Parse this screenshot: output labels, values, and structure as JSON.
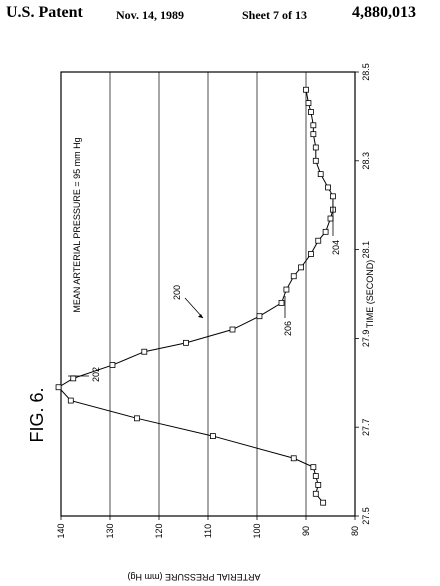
{
  "header": {
    "patent": "U.S. Patent",
    "date": "Nov. 14, 1989",
    "sheet": "Sheet 7 of 13",
    "number": "4,880,013"
  },
  "figure": {
    "label": "FIG. 6.",
    "annotation": "MEAN ARTERIAL PRESSURE = 95 mm Hg",
    "refs": [
      {
        "text": "200"
      },
      {
        "text": "202"
      },
      {
        "text": "204"
      },
      {
        "text": "206"
      }
    ]
  },
  "chart_data": {
    "type": "line",
    "orientation": "rotated-90",
    "title": "",
    "xlabel": "TIME (SECOND)",
    "ylabel": "ARTERIAL PRESSURE (mm Hg)",
    "xlim": [
      27.5,
      28.5
    ],
    "ylim": [
      80,
      140
    ],
    "x_ticks": [
      "27.5",
      "27.7",
      "27.9",
      "28.1",
      "28.3",
      "28.5"
    ],
    "y_ticks": [
      "80",
      "90",
      "100",
      "110",
      "120",
      "130",
      "140"
    ],
    "grid": "horizontal lines at each pressure tick",
    "marker": "open square",
    "series": [
      {
        "x": [
          27.53,
          27.55,
          27.57,
          27.59,
          27.61,
          27.63,
          27.68,
          27.72,
          27.76,
          27.79,
          27.81,
          27.84,
          27.87,
          27.89,
          27.92,
          27.95,
          27.98,
          28.01,
          28.04,
          28.06,
          28.09,
          28.12,
          28.14,
          28.17,
          28.19,
          28.22,
          28.24,
          28.27,
          28.3,
          28.33,
          28.36,
          28.38,
          28.41,
          28.43,
          28.46
        ],
        "values": [
          86.5,
          88.0,
          87.5,
          88.0,
          88.5,
          92.5,
          109.0,
          124.5,
          138.0,
          140.5,
          137.5,
          129.5,
          123.0,
          114.5,
          105.0,
          99.5,
          95.0,
          94.0,
          92.5,
          91.0,
          89.0,
          87.5,
          86.0,
          85.0,
          84.5,
          84.5,
          85.5,
          87.0,
          88.0,
          88.0,
          88.5,
          88.5,
          89.0,
          89.5,
          90.0
        ]
      }
    ]
  }
}
